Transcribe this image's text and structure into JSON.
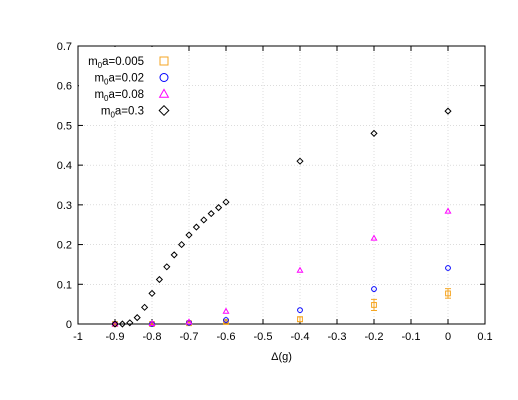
{
  "chart_data": {
    "type": "scatter",
    "title": "",
    "xlabel": "Δ(g)",
    "ylabel": "",
    "xlim": [
      -1,
      0.1
    ],
    "ylim": [
      0,
      0.7
    ],
    "x_ticks": [
      -1,
      -0.9,
      -0.8,
      -0.7,
      -0.6,
      -0.5,
      -0.4,
      -0.3,
      -0.2,
      -0.1,
      0,
      0.1
    ],
    "x_tick_labels": [
      "-1",
      "-0.9",
      "-0.8",
      "-0.7",
      "-0.6",
      "-0.5",
      "-0.4",
      "-0.3",
      "-0.2",
      "-0.1",
      "0",
      "0.1"
    ],
    "y_ticks": [
      0,
      0.1,
      0.2,
      0.3,
      0.4,
      0.5,
      0.6,
      0.7
    ],
    "y_tick_labels": [
      "0",
      "0.1",
      "0.2",
      "0.3",
      "0.4",
      "0.5",
      "0.6",
      "0.7"
    ],
    "grid": true,
    "legend_position": "top-left",
    "series": [
      {
        "name_prefix": "m",
        "name_sub": "0",
        "name_suffix": "a=0.005",
        "marker": "square",
        "color": "#f5a623",
        "points": [
          {
            "x": -0.9,
            "y": 0.0,
            "err": 0.002
          },
          {
            "x": -0.8,
            "y": 0.0,
            "err": 0.002
          },
          {
            "x": -0.7,
            "y": 0.002,
            "err": 0.002
          },
          {
            "x": -0.6,
            "y": 0.005,
            "err": 0.003
          },
          {
            "x": -0.4,
            "y": 0.012,
            "err": 0.006
          },
          {
            "x": -0.2,
            "y": 0.048,
            "err": 0.014
          },
          {
            "x": 0.0,
            "y": 0.077,
            "err": 0.012
          }
        ]
      },
      {
        "name_prefix": "m",
        "name_sub": "0",
        "name_suffix": "a=0.02",
        "marker": "circle",
        "color": "#0000ff",
        "points": [
          {
            "x": -0.9,
            "y": 0.0,
            "err": 0
          },
          {
            "x": -0.8,
            "y": 0.0,
            "err": 0
          },
          {
            "x": -0.7,
            "y": 0.003,
            "err": 0
          },
          {
            "x": -0.6,
            "y": 0.01,
            "err": 0
          },
          {
            "x": -0.4,
            "y": 0.035,
            "err": 0
          },
          {
            "x": -0.2,
            "y": 0.088,
            "err": 0
          },
          {
            "x": 0.0,
            "y": 0.141,
            "err": 0
          }
        ]
      },
      {
        "name_prefix": "m",
        "name_sub": "0",
        "name_suffix": "a=0.08",
        "marker": "triangle",
        "color": "#ff00ff",
        "points": [
          {
            "x": -0.9,
            "y": 0.0,
            "err": 0
          },
          {
            "x": -0.8,
            "y": 0.001,
            "err": 0
          },
          {
            "x": -0.7,
            "y": 0.005,
            "err": 0
          },
          {
            "x": -0.6,
            "y": 0.032,
            "err": 0
          },
          {
            "x": -0.4,
            "y": 0.135,
            "err": 0
          },
          {
            "x": -0.2,
            "y": 0.216,
            "err": 0
          },
          {
            "x": 0.0,
            "y": 0.284,
            "err": 0
          }
        ]
      },
      {
        "name_prefix": "m",
        "name_sub": "0",
        "name_suffix": "a=0.3",
        "marker": "diamond",
        "color": "#000000",
        "points": [
          {
            "x": -0.9,
            "y": 0.0,
            "err": 0
          },
          {
            "x": -0.88,
            "y": 0.0,
            "err": 0
          },
          {
            "x": -0.86,
            "y": 0.003,
            "err": 0
          },
          {
            "x": -0.84,
            "y": 0.016,
            "err": 0
          },
          {
            "x": -0.82,
            "y": 0.042,
            "err": 0
          },
          {
            "x": -0.8,
            "y": 0.077,
            "err": 0
          },
          {
            "x": -0.78,
            "y": 0.112,
            "err": 0
          },
          {
            "x": -0.76,
            "y": 0.144,
            "err": 0
          },
          {
            "x": -0.74,
            "y": 0.174,
            "err": 0
          },
          {
            "x": -0.72,
            "y": 0.2,
            "err": 0
          },
          {
            "x": -0.7,
            "y": 0.224,
            "err": 0
          },
          {
            "x": -0.68,
            "y": 0.244,
            "err": 0
          },
          {
            "x": -0.66,
            "y": 0.262,
            "err": 0
          },
          {
            "x": -0.64,
            "y": 0.278,
            "err": 0
          },
          {
            "x": -0.62,
            "y": 0.293,
            "err": 0
          },
          {
            "x": -0.6,
            "y": 0.307,
            "err": 0
          },
          {
            "x": -0.4,
            "y": 0.41,
            "err": 0
          },
          {
            "x": -0.2,
            "y": 0.48,
            "err": 0
          },
          {
            "x": 0.0,
            "y": 0.536,
            "err": 0
          }
        ]
      }
    ]
  }
}
